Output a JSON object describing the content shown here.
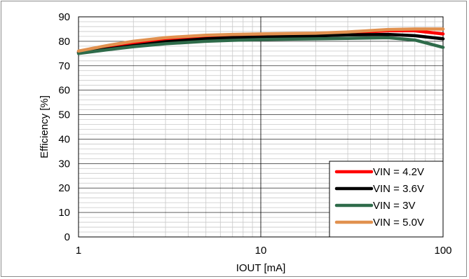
{
  "chart_data": {
    "type": "line",
    "xscale": "log",
    "xlim": [
      1,
      100
    ],
    "ylim": [
      0,
      90
    ],
    "xticks": [
      "1",
      "10",
      "100"
    ],
    "yticks": [
      "0",
      "10",
      "20",
      "30",
      "40",
      "50",
      "60",
      "70",
      "80",
      "90"
    ],
    "xlabel": "IOUT [mA]",
    "ylabel": "Efficiency [%]",
    "grid": "major and minor",
    "legend_position": "bottom-right",
    "series": [
      {
        "name": "VIN = 4.2V",
        "color": "#ff0000",
        "x": [
          1,
          1.5,
          2,
          3,
          5,
          7,
          10,
          15,
          20,
          30,
          50,
          70,
          100
        ],
        "y": [
          75.5,
          77.5,
          79,
          80.5,
          81.5,
          82,
          82.3,
          82.6,
          83,
          83.5,
          84.3,
          84.3,
          83
        ]
      },
      {
        "name": "VIN = 3.6V",
        "color": "#000000",
        "x": [
          1,
          1.5,
          2,
          3,
          5,
          7,
          10,
          15,
          20,
          30,
          50,
          70,
          100
        ],
        "y": [
          75.5,
          77,
          78.2,
          79.8,
          81,
          81.5,
          81.7,
          82,
          82.2,
          82.6,
          82.8,
          82.3,
          81
        ]
      },
      {
        "name": "VIN = 3V",
        "color": "#2e6b4a",
        "x": [
          1,
          1.5,
          2,
          3,
          5,
          7,
          10,
          15,
          20,
          30,
          50,
          70,
          100
        ],
        "y": [
          75,
          76.7,
          77.8,
          79,
          80,
          80.4,
          80.7,
          80.9,
          81,
          81.2,
          81.5,
          80.5,
          77.5
        ]
      },
      {
        "name": "VIN = 5.0V",
        "color": "#e1914f",
        "x": [
          1,
          1.5,
          2,
          3,
          5,
          7,
          10,
          15,
          20,
          30,
          50,
          70,
          100
        ],
        "y": [
          76,
          78.5,
          80,
          81.5,
          82.5,
          82.8,
          83,
          83.2,
          83.3,
          83.8,
          84.8,
          85,
          85
        ]
      }
    ]
  }
}
